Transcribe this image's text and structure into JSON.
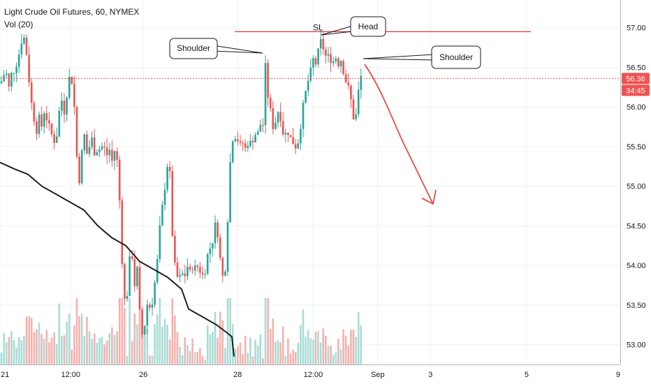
{
  "header": {
    "title": "Light Crude Oil Futures, 60, NYMEX",
    "volume_label": "Vol (20)"
  },
  "colors": {
    "up": "#26a69a",
    "down": "#ef5350",
    "vol_up": "#a9dcd6",
    "vol_down": "#f6b1ae",
    "ma": "#1e1e1e",
    "sl": "#e53935",
    "arrow": "#e53935",
    "grid": "#eef0f3"
  },
  "chart_data": {
    "type": "candlestick",
    "symbol": "Light Crude Oil Futures",
    "interval": "60",
    "exchange": "NYMEX",
    "y_ticks": [
      "57.00",
      "56.50",
      "56.00",
      "55.50",
      "55.00",
      "54.50",
      "54.00",
      "53.50",
      "53.00"
    ],
    "ylim": [
      52.75,
      57.35
    ],
    "x_ticks": [
      {
        "label": "21",
        "pos": 0
      },
      {
        "label": "12:00",
        "pos": 0.114
      },
      {
        "label": "26",
        "pos": 0.231
      },
      {
        "label": "28",
        "pos": 0.383
      },
      {
        "label": "12:00",
        "pos": 0.505
      },
      {
        "label": "Sep",
        "pos": 0.609
      },
      {
        "label": "3",
        "pos": 0.694
      },
      {
        "label": "5",
        "pos": 0.849
      },
      {
        "label": "9",
        "pos": 1.0
      }
    ],
    "last_price": "56.36",
    "countdown": "34:45",
    "stop_loss": {
      "label": "SL",
      "value": 56.95
    },
    "annotations": [
      {
        "text": "Shoulder"
      },
      {
        "text": "Head"
      },
      {
        "text": "Shoulder"
      }
    ],
    "price_path": [
      [
        0,
        56.3
      ],
      [
        4,
        56.35
      ],
      [
        8,
        56.5
      ],
      [
        12,
        56.2
      ],
      [
        16,
        56.4
      ],
      [
        22,
        56.5
      ],
      [
        28,
        56.7
      ],
      [
        32,
        56.9
      ],
      [
        36,
        56.85
      ],
      [
        40,
        56.5
      ],
      [
        44,
        56.1
      ],
      [
        48,
        55.9
      ],
      [
        52,
        55.7
      ],
      [
        56,
        55.85
      ],
      [
        60,
        55.75
      ],
      [
        64,
        56.0
      ],
      [
        68,
        55.8
      ],
      [
        72,
        55.7
      ],
      [
        76,
        55.6
      ],
      [
        80,
        55.55
      ],
      [
        84,
        55.9
      ],
      [
        88,
        56.1
      ],
      [
        92,
        55.95
      ],
      [
        96,
        56.2
      ],
      [
        100,
        56.4
      ],
      [
        104,
        56.3
      ],
      [
        108,
        55.8
      ],
      [
        112,
        54.95
      ],
      [
        116,
        55.3
      ],
      [
        120,
        55.7
      ],
      [
        124,
        55.4
      ],
      [
        128,
        55.5
      ],
      [
        132,
        55.6
      ],
      [
        136,
        55.4
      ],
      [
        140,
        55.5
      ],
      [
        144,
        55.45
      ],
      [
        148,
        55.55
      ],
      [
        152,
        55.35
      ],
      [
        156,
        55.5
      ],
      [
        160,
        55.3
      ],
      [
        164,
        55.45
      ],
      [
        168,
        55.3
      ],
      [
        172,
        54.7
      ],
      [
        176,
        53.8
      ],
      [
        180,
        53.4
      ],
      [
        184,
        53.9
      ],
      [
        188,
        54.3
      ],
      [
        192,
        53.7
      ],
      [
        196,
        54.0
      ],
      [
        200,
        53.4
      ],
      [
        204,
        53.1
      ],
      [
        208,
        53.3
      ],
      [
        212,
        53.6
      ],
      [
        216,
        53.4
      ],
      [
        220,
        53.7
      ],
      [
        224,
        53.9
      ],
      [
        228,
        54.4
      ],
      [
        232,
        54.7
      ],
      [
        236,
        55.0
      ],
      [
        240,
        55.3
      ],
      [
        244,
        55.1
      ],
      [
        248,
        54.1
      ],
      [
        252,
        53.9
      ],
      [
        256,
        53.8
      ],
      [
        260,
        53.9
      ],
      [
        264,
        53.85
      ],
      [
        268,
        54.0
      ],
      [
        272,
        53.9
      ],
      [
        276,
        54.0
      ],
      [
        280,
        53.95
      ],
      [
        284,
        54.0
      ],
      [
        288,
        53.9
      ],
      [
        292,
        53.85
      ],
      [
        296,
        54.1
      ],
      [
        300,
        54.2
      ],
      [
        304,
        54.3
      ],
      [
        308,
        54.5
      ],
      [
        312,
        54.4
      ],
      [
        316,
        54.0
      ],
      [
        320,
        53.8
      ],
      [
        324,
        54.1
      ],
      [
        328,
        55.1
      ],
      [
        332,
        55.6
      ],
      [
        336,
        55.65
      ],
      [
        340,
        55.6
      ],
      [
        344,
        55.5
      ],
      [
        348,
        55.55
      ],
      [
        352,
        55.45
      ],
      [
        356,
        55.6
      ],
      [
        360,
        55.5
      ],
      [
        364,
        55.7
      ],
      [
        368,
        55.6
      ],
      [
        372,
        55.8
      ],
      [
        376,
        55.7
      ],
      [
        380,
        56.5
      ],
      [
        384,
        56.1
      ],
      [
        388,
        55.9
      ],
      [
        392,
        55.7
      ],
      [
        396,
        55.9
      ],
      [
        400,
        56.0
      ],
      [
        404,
        55.7
      ],
      [
        408,
        55.65
      ],
      [
        412,
        55.7
      ],
      [
        416,
        55.6
      ],
      [
        420,
        55.55
      ],
      [
        424,
        55.5
      ],
      [
        428,
        55.6
      ],
      [
        432,
        55.9
      ],
      [
        436,
        56.1
      ],
      [
        440,
        56.3
      ],
      [
        444,
        56.4
      ],
      [
        448,
        56.6
      ],
      [
        452,
        56.55
      ],
      [
        456,
        56.7
      ],
      [
        460,
        56.85
      ],
      [
        464,
        56.7
      ],
      [
        468,
        56.6
      ],
      [
        472,
        56.65
      ],
      [
        476,
        56.55
      ],
      [
        480,
        56.65
      ],
      [
        484,
        56.55
      ],
      [
        488,
        56.6
      ],
      [
        492,
        56.45
      ],
      [
        496,
        56.3
      ],
      [
        500,
        56.2
      ],
      [
        504,
        56.0
      ],
      [
        508,
        55.75
      ],
      [
        512,
        56.1
      ],
      [
        516,
        56.4
      ],
      [
        518,
        56.36
      ]
    ],
    "ma_path": [
      [
        0,
        55.3
      ],
      [
        20,
        55.22
      ],
      [
        40,
        55.15
      ],
      [
        60,
        55.0
      ],
      [
        80,
        54.9
      ],
      [
        100,
        54.8
      ],
      [
        120,
        54.7
      ],
      [
        140,
        54.5
      ],
      [
        160,
        54.35
      ],
      [
        180,
        54.25
      ],
      [
        200,
        54.05
      ],
      [
        220,
        53.95
      ],
      [
        240,
        53.85
      ],
      [
        260,
        53.7
      ],
      [
        270,
        53.45
      ],
      [
        290,
        53.35
      ],
      [
        310,
        53.25
      ],
      [
        325,
        53.15
      ],
      [
        332,
        53.1
      ],
      [
        335,
        52.85
      ]
    ]
  }
}
